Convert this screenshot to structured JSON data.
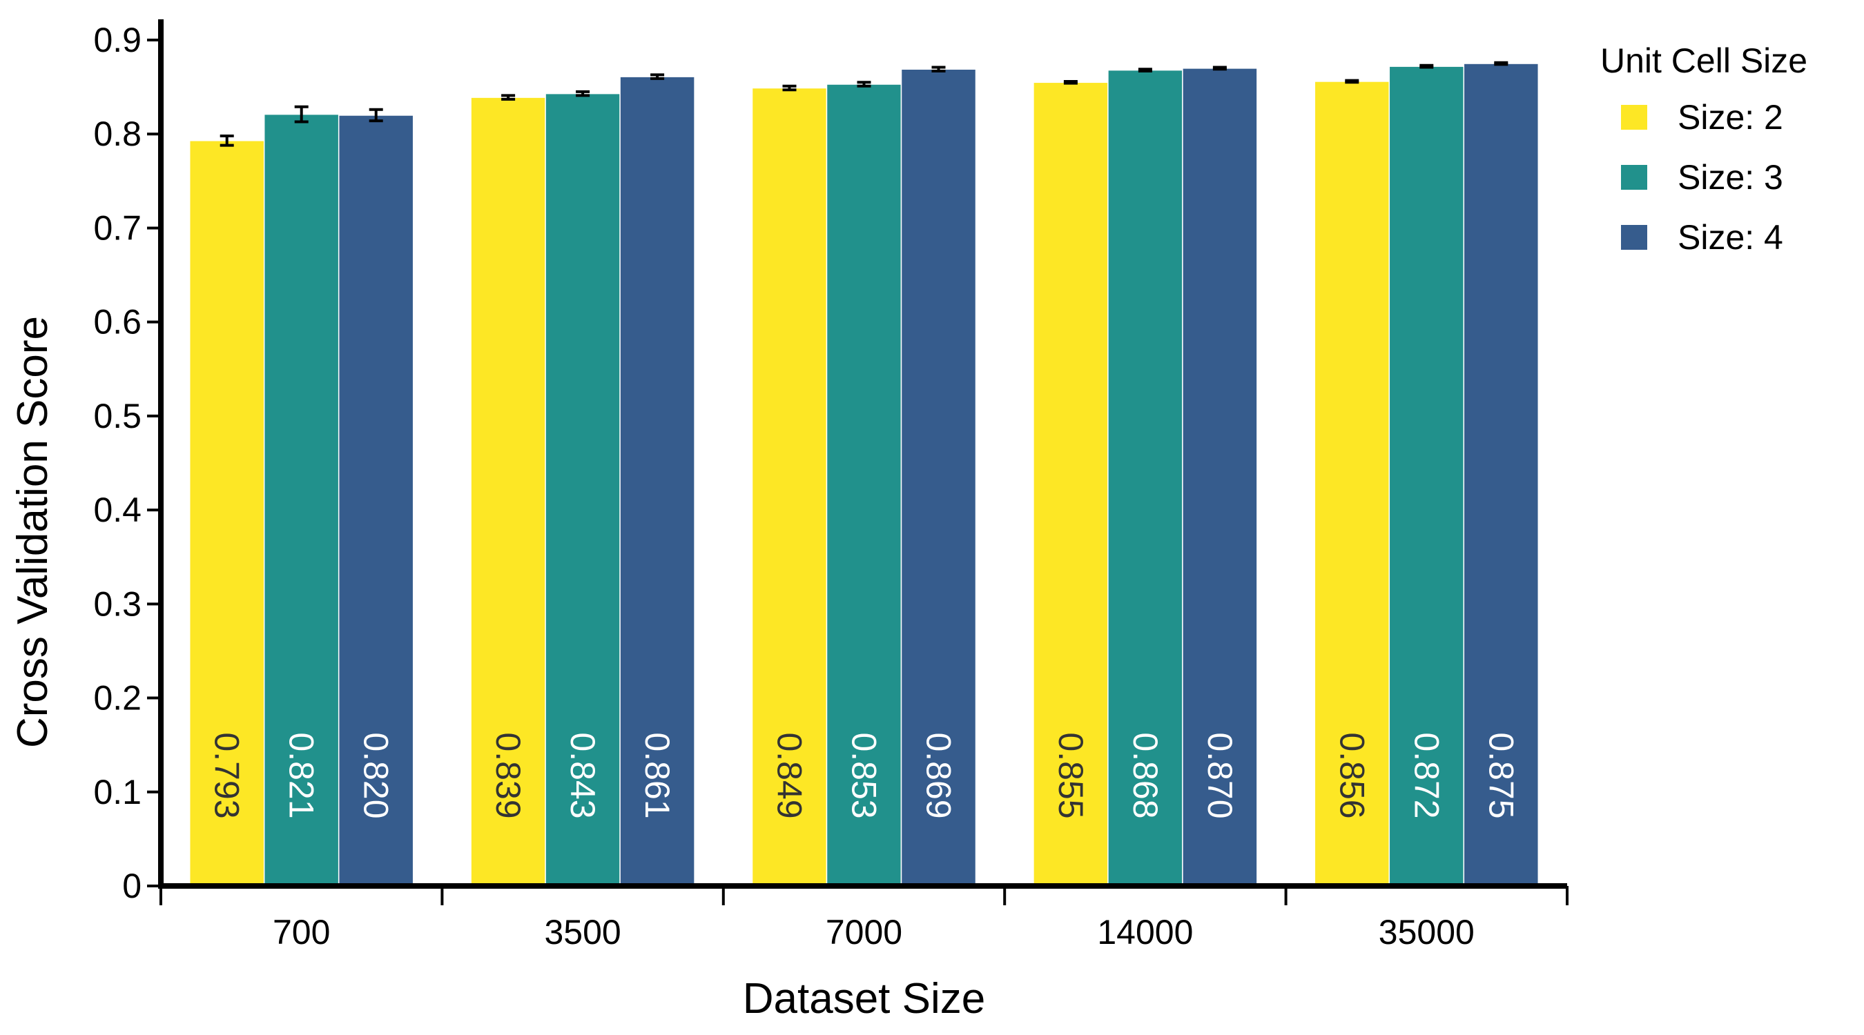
{
  "chart_data": {
    "type": "bar",
    "xlabel": "Dataset Size",
    "ylabel": "Cross Validation Score",
    "ylim": [
      0,
      0.9
    ],
    "yticks": [
      "0",
      "0.1",
      "0.2",
      "0.3",
      "0.4",
      "0.5",
      "0.6",
      "0.7",
      "0.8",
      "0.9"
    ],
    "categories": [
      "700",
      "3500",
      "7000",
      "14000",
      "35000"
    ],
    "legend_title": "Unit Cell Size",
    "legend_position": "top-right",
    "grid": false,
    "series": [
      {
        "name": "Size: 2",
        "color": "#fde725",
        "label_color": "#333333",
        "values": [
          0.793,
          0.839,
          0.849,
          0.855,
          0.856
        ],
        "labels": [
          "0.793",
          "0.839",
          "0.849",
          "0.855",
          "0.856"
        ],
        "error": [
          0.005,
          0.002,
          0.002,
          0.001,
          0.001
        ]
      },
      {
        "name": "Size: 3",
        "color": "#21918c",
        "label_color": "#ffffff",
        "values": [
          0.821,
          0.843,
          0.853,
          0.868,
          0.872
        ],
        "labels": [
          "0.821",
          "0.843",
          "0.853",
          "0.868",
          "0.872"
        ],
        "error": [
          0.008,
          0.002,
          0.002,
          0.001,
          0.001
        ]
      },
      {
        "name": "Size: 4",
        "color": "#365c8d",
        "label_color": "#ffffff",
        "values": [
          0.82,
          0.861,
          0.869,
          0.87,
          0.875
        ],
        "labels": [
          "0.820",
          "0.861",
          "0.869",
          "0.870",
          "0.875"
        ],
        "error": [
          0.006,
          0.002,
          0.002,
          0.001,
          0.001
        ]
      }
    ]
  }
}
